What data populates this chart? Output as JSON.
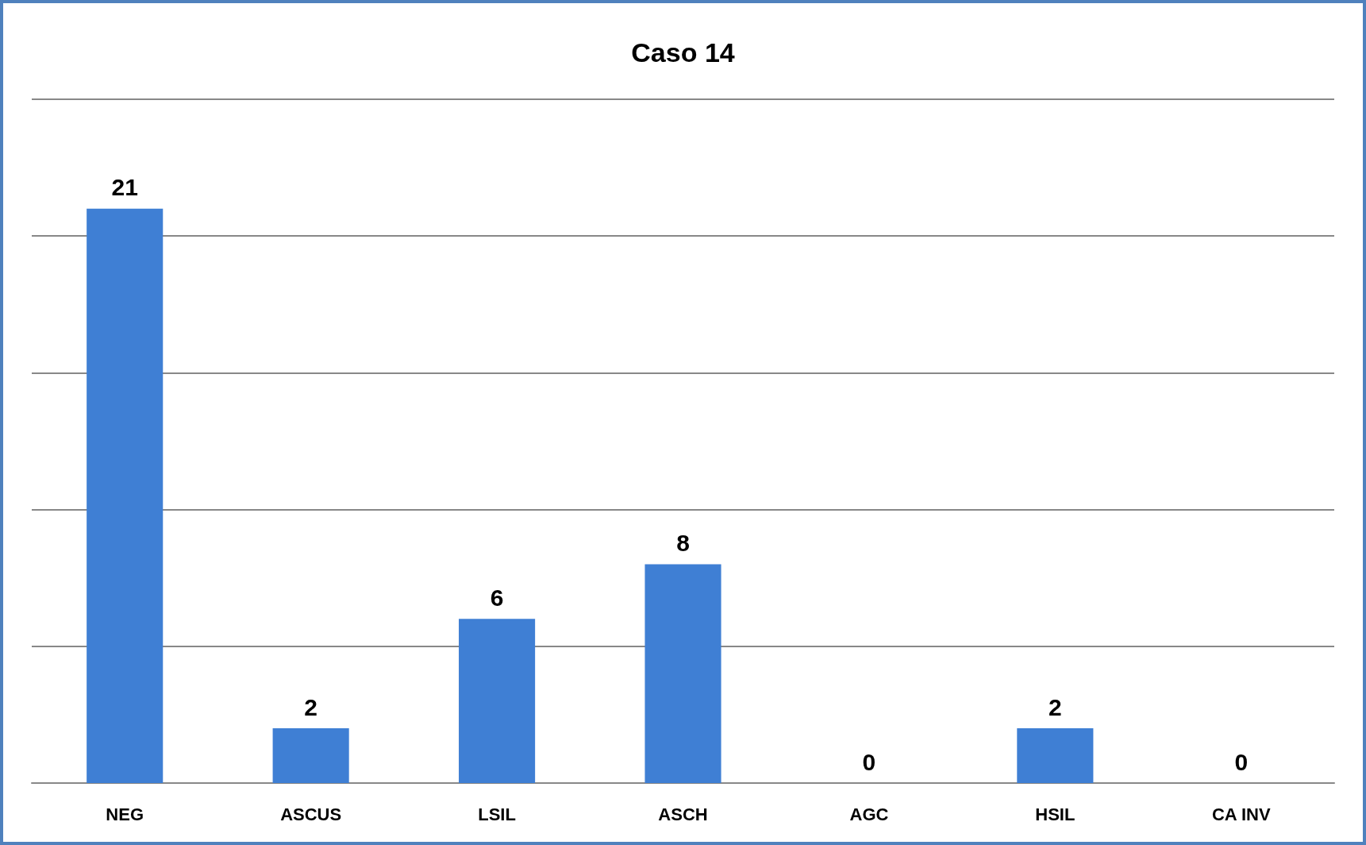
{
  "chart_data": {
    "type": "bar",
    "title": "Caso 14",
    "categories": [
      "NEG",
      "ASCUS",
      "LSIL",
      "ASCH",
      "AGC",
      "HSIL",
      "CA INV"
    ],
    "values": [
      21,
      2,
      6,
      8,
      0,
      2,
      0
    ],
    "color": "#3f7fd4",
    "ylim": [
      0,
      25
    ],
    "yticks": [
      {
        "value": 0,
        "label": null
      },
      {
        "value": 5,
        "label": null
      },
      {
        "value": 10,
        "label": null
      },
      {
        "value": 15,
        "label": null
      },
      {
        "value": 20,
        "label": null
      },
      {
        "value": 25,
        "label": null
      }
    ],
    "grid": "y",
    "tick_labels": "x",
    "data_labels": true
  }
}
